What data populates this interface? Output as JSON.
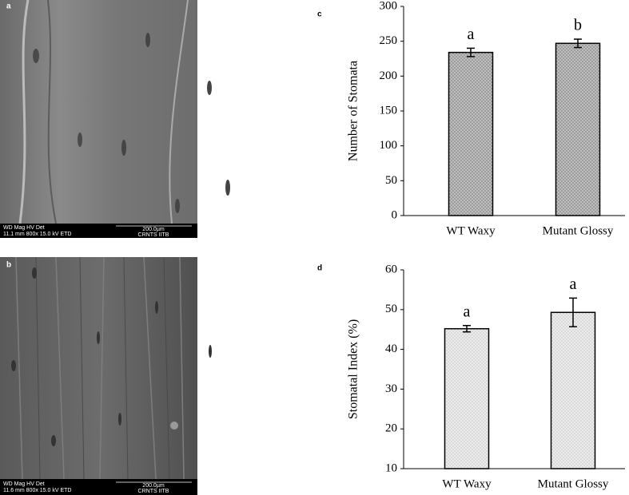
{
  "panels": [
    {
      "label": "a",
      "info_header": "WD   Mag   HV   Det",
      "info_values": "11.1 mm 800x 15.0 kV ETD",
      "scale": "200.0µm",
      "lab": "CRNTS IITB"
    },
    {
      "label": "b",
      "info_header": "WD   Mag   HV   Det",
      "info_values": "11.6 mm 800x 15.0 kV ETD",
      "scale": "200.0µm",
      "lab": "CRNTS IITB"
    }
  ],
  "chart_data": [
    {
      "type": "bar",
      "panel_label": "c",
      "ylabel": "Number of Stomata",
      "categories": [
        "WT Waxy",
        "Mutant Glossy"
      ],
      "values": [
        234,
        247
      ],
      "errors": [
        6,
        6
      ],
      "bar_labels": [
        "a",
        "b"
      ],
      "color": "#b5b5b5",
      "ylim": [
        0,
        300
      ],
      "yticks": [
        0,
        50,
        100,
        150,
        200,
        250,
        300
      ]
    },
    {
      "type": "bar",
      "panel_label": "d",
      "ylabel": "Stomatal Index (%)",
      "categories": [
        "WT Waxy",
        "Mutant Glossy"
      ],
      "values": [
        45.2,
        49.3
      ],
      "errors": [
        0.8,
        3.6
      ],
      "bar_labels": [
        "a",
        "a"
      ],
      "color": "#e6e6e6",
      "ylim": [
        10,
        60
      ],
      "yticks": [
        10,
        20,
        30,
        40,
        50,
        60
      ]
    }
  ]
}
